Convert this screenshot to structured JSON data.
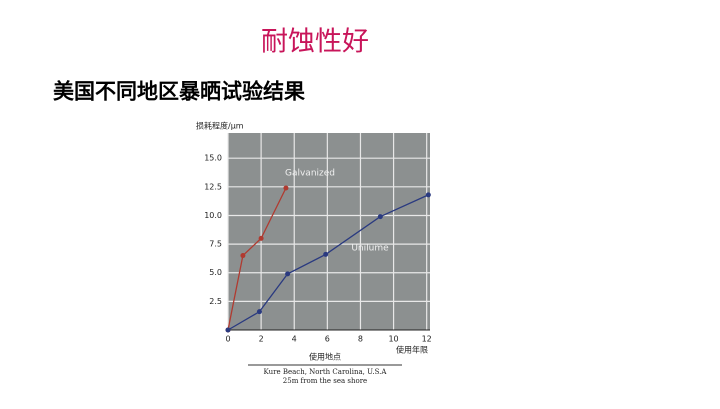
{
  "slide_title": "耐蚀性好",
  "slide_subtitle": "美国不同地区暴晒试验结果",
  "chart_data": {
    "type": "line",
    "y_label": "损耗程度/μm",
    "x_label": "使用年限",
    "location_label": "使用地点",
    "footnote": [
      "Kure Beach, North Carolina, U.S.A",
      "25m from the sea shore"
    ],
    "series": [
      {
        "name": "Galvanized",
        "color": "#b03a30",
        "x": [
          0,
          0.9,
          2,
          3.5
        ],
        "values": [
          0,
          6.5,
          8,
          12.4
        ]
      },
      {
        "name": "Unilume",
        "color": "#2a3a80",
        "x": [
          0,
          1.9,
          3.6,
          5.9,
          9.2,
          12.1
        ],
        "values": [
          0,
          1.6,
          4.9,
          6.6,
          9.9,
          11.8
        ]
      }
    ],
    "xlim": [
      0,
      12.2
    ],
    "xticks": [
      0,
      2,
      4,
      6,
      8,
      10,
      12
    ],
    "ylim": [
      0,
      17.2
    ],
    "yticks": [
      2.5,
      {
        "value": 5,
        "label": "5.0"
      },
      7.5,
      {
        "value": 10,
        "label": "10.0"
      },
      12.5,
      {
        "value": 15,
        "label": "15.0"
      }
    ],
    "grid": true
  }
}
